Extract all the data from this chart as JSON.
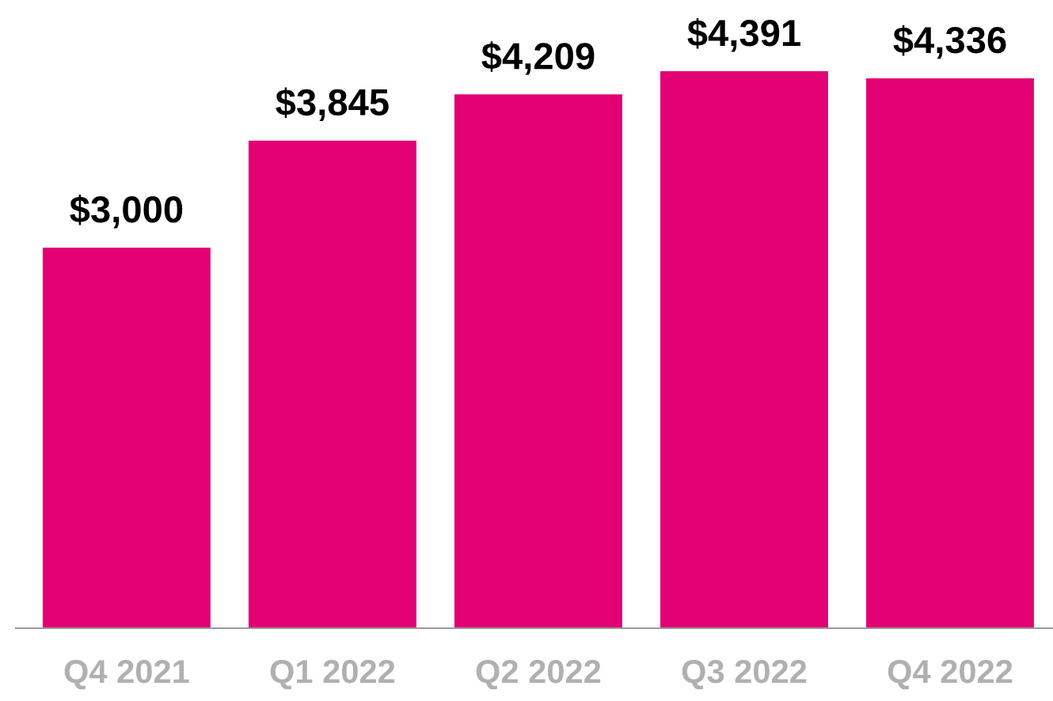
{
  "chart_data": {
    "type": "bar",
    "categories": [
      "Q4 2021",
      "Q1 2022",
      "Q2 2022",
      "Q3 2022",
      "Q4 2022"
    ],
    "values": [
      3000,
      3845,
      4209,
      4391,
      4336
    ],
    "color": "#e20074",
    "value_labels": [
      "$3,000",
      "$3,845",
      "$4,209",
      "$4,391",
      "$4,336"
    ],
    "grid": false,
    "legend": false
  }
}
